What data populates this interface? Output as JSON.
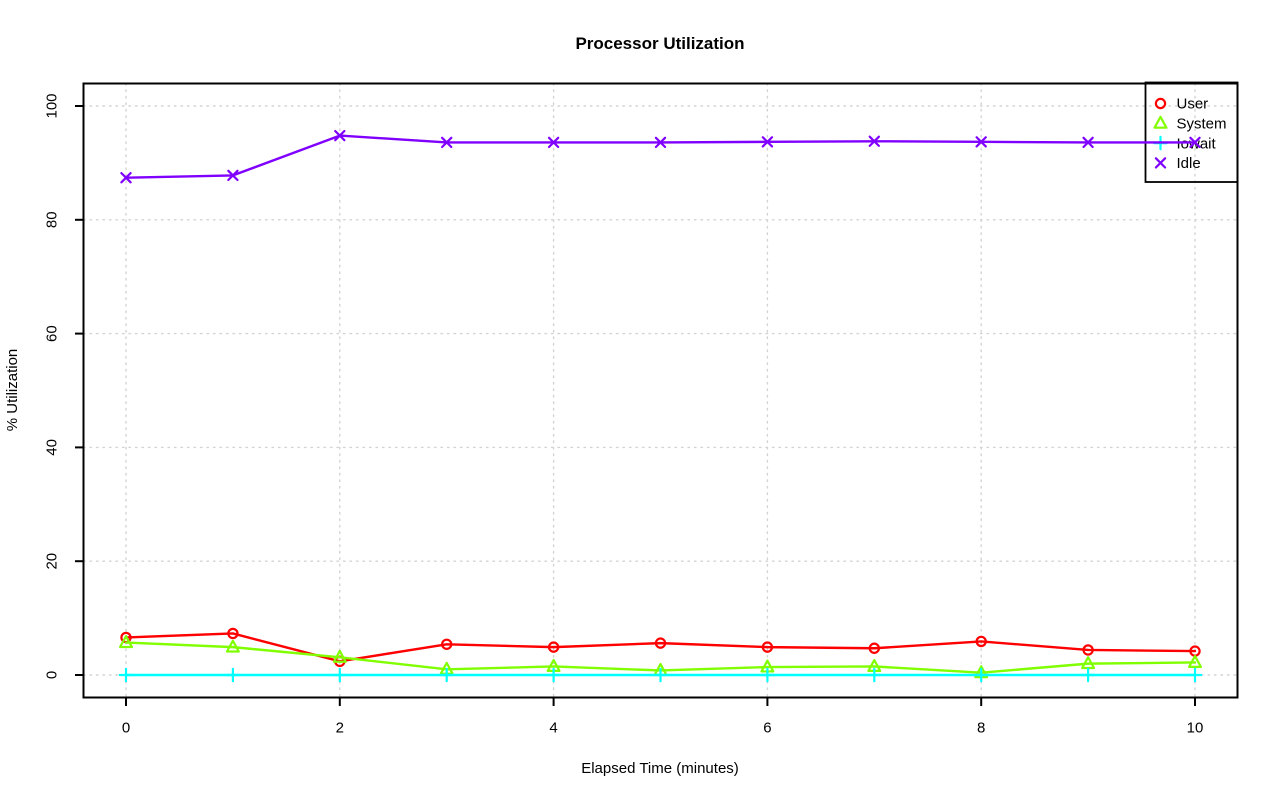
{
  "chart_data": {
    "type": "line",
    "title": "Processor Utilization",
    "xlabel": "Elapsed Time (minutes)",
    "ylabel": "% Utilization",
    "x": [
      0,
      1,
      2,
      3,
      4,
      5,
      6,
      7,
      8,
      9,
      10
    ],
    "xlim": [
      0,
      10
    ],
    "ylim": [
      0,
      100
    ],
    "xticks": [
      0,
      2,
      4,
      6,
      8,
      10
    ],
    "yticks": [
      0,
      20,
      40,
      60,
      80,
      100
    ],
    "grid": true,
    "grid_color": "#d3d3d3",
    "axis_color": "#000000",
    "legend_position": "topright",
    "series": [
      {
        "name": "User",
        "color": "#ff0000",
        "marker": "circle-open",
        "values": [
          6.6,
          7.3,
          2.4,
          5.4,
          4.9,
          5.6,
          4.9,
          4.7,
          5.9,
          4.4,
          4.2
        ]
      },
      {
        "name": "System",
        "color": "#80ff00",
        "marker": "triangle-open",
        "values": [
          5.7,
          4.9,
          3.1,
          1.0,
          1.5,
          0.8,
          1.4,
          1.5,
          0.4,
          2.0,
          2.2
        ]
      },
      {
        "name": "Iowait",
        "color": "#00ffff",
        "marker": "plus",
        "values": [
          0,
          0,
          0,
          0,
          0,
          0,
          0,
          0,
          0,
          0,
          0
        ]
      },
      {
        "name": "Idle",
        "color": "#8000ff",
        "marker": "x",
        "values": [
          87.4,
          87.8,
          94.8,
          93.6,
          93.6,
          93.6,
          93.7,
          93.8,
          93.7,
          93.6,
          93.6
        ]
      }
    ]
  }
}
